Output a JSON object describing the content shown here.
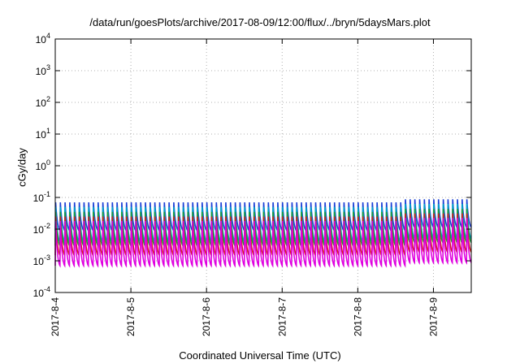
{
  "chart_data": {
    "type": "line",
    "title": "/data/run/goesPlots/archive/2017-08-09/12:00/flux/../bryn/5daysMars.plot",
    "xlabel": "Coordinated Universal Time (UTC)",
    "ylabel": "cGy/day",
    "yscale": "log",
    "ylim": [
      0.0001,
      10000
    ],
    "yticks": [
      {
        "value": 0.0001,
        "base": "10",
        "exp": "-4"
      },
      {
        "value": 0.001,
        "base": "10",
        "exp": "-3"
      },
      {
        "value": 0.01,
        "base": "10",
        "exp": "-2"
      },
      {
        "value": 0.1,
        "base": "10",
        "exp": "-1"
      },
      {
        "value": 1,
        "base": "10",
        "exp": "0"
      },
      {
        "value": 10,
        "base": "10",
        "exp": "1"
      },
      {
        "value": 100,
        "base": "10",
        "exp": "2"
      },
      {
        "value": 1000,
        "base": "10",
        "exp": "3"
      },
      {
        "value": 10000,
        "base": "10",
        "exp": "4"
      }
    ],
    "xlim": [
      "2017-08-04T00:00",
      "2017-08-09T12:00"
    ],
    "xticks": [
      "2017-8-4",
      "2017-8-5",
      "2017-8-6",
      "2017-8-7",
      "2017-8-8",
      "2017-8-9"
    ],
    "grid": true,
    "cycles_per_day": 16,
    "series": [
      {
        "color": "#1a3fd6",
        "peak": 0.07,
        "trough": 0.009
      },
      {
        "color": "#00a6c8",
        "peak": 0.05,
        "trough": 0.004
      },
      {
        "color": "#1a9e3a",
        "peak": 0.035,
        "trough": 0.003
      },
      {
        "color": "#d21e1e",
        "peak": 0.025,
        "trough": 0.0015
      },
      {
        "color": "#e000e0",
        "peak": 0.018,
        "trough": 0.0007
      }
    ]
  }
}
